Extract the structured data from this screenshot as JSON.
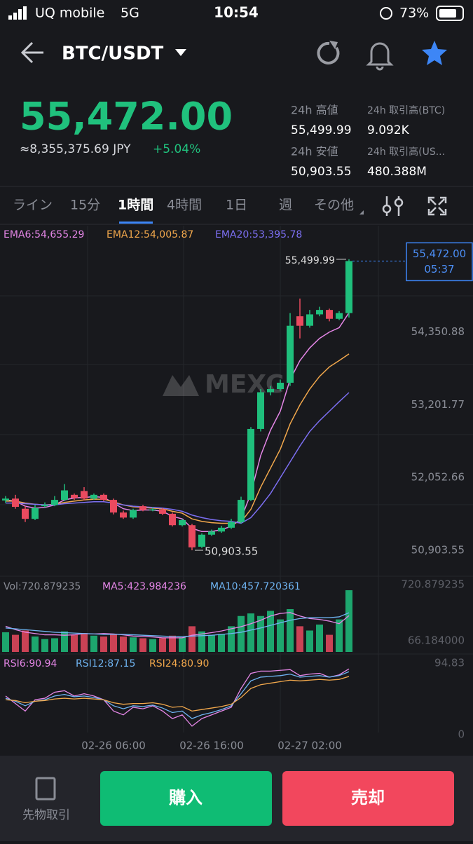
{
  "status": {
    "carrier": "UQ mobile",
    "network": "5G",
    "time": "10:54",
    "battery": "73%"
  },
  "header": {
    "pair": "BTC/USDT"
  },
  "price": {
    "last": "55,472.00",
    "jpy": "≈8,355,375.69 JPY",
    "change": "+5.04%"
  },
  "stats": {
    "high_label": "24h 高値",
    "high": "55,499.99",
    "vol_btc_label": "24h 取引高(BTC)",
    "vol_btc": "9.092K",
    "low_label": "24h 安値",
    "low": "50,903.55",
    "vol_usdt_label": "24h 取引高(US...",
    "vol_usdt": "480.388M"
  },
  "tabs": [
    "ライン",
    "15分",
    "1時間",
    "4時間",
    "1日",
    "週",
    "その他"
  ],
  "watermark": "MEXC",
  "bottom": {
    "futures": "先物取引",
    "buy": "購入",
    "sell": "売却"
  },
  "chart_data": {
    "type": "candlestick",
    "up_color": "#1fbf7c",
    "down_color": "#ea4a5f",
    "categories": [
      null,
      null,
      null,
      null,
      null,
      null,
      null,
      null,
      null,
      null,
      null,
      "02-26 06:00",
      null,
      null,
      null,
      null,
      null,
      null,
      null,
      null,
      null,
      "02-26 16:00",
      null,
      null,
      null,
      null,
      null,
      null,
      null,
      null,
      null,
      "02-27 02:00",
      null,
      null,
      null,
      null
    ],
    "open": [
      51690,
      51720,
      51560,
      51400,
      51600,
      51620,
      51700,
      51780,
      51840,
      51720,
      51780,
      51700,
      51500,
      51420,
      51600,
      51540,
      51550,
      51480,
      51300,
      51300,
      50960,
      51150,
      51200,
      51260,
      51350,
      51700,
      52820,
      53400,
      53450,
      53550,
      54600,
      54450,
      54630,
      54700,
      54560,
      54650
    ],
    "close": [
      51720,
      51590,
      51400,
      51570,
      51620,
      51700,
      51850,
      51730,
      51720,
      51780,
      51700,
      51500,
      51420,
      51540,
      51540,
      51550,
      51480,
      51300,
      51380,
      50950,
      51150,
      51200,
      51260,
      51350,
      51700,
      52820,
      53400,
      53450,
      53550,
      54450,
      54450,
      54630,
      54700,
      54560,
      54650,
      55472
    ],
    "high": [
      51760,
      51780,
      51600,
      51620,
      51660,
      51760,
      51950,
      51800,
      51900,
      51800,
      51800,
      51720,
      51530,
      51560,
      51620,
      51580,
      51570,
      51500,
      51400,
      51320,
      51170,
      51230,
      51290,
      51400,
      51750,
      52850,
      53450,
      53500,
      53600,
      54650,
      54880,
      54700,
      54750,
      54720,
      54680,
      55499.99
    ],
    "low": [
      51650,
      51560,
      51350,
      51380,
      51580,
      51600,
      51680,
      51700,
      51690,
      51700,
      51680,
      51470,
      51400,
      51400,
      51520,
      51520,
      51460,
      51280,
      51280,
      50903.55,
      50940,
      51130,
      51180,
      51240,
      51330,
      51680,
      52780,
      53350,
      53420,
      53500,
      54250,
      54420,
      54600,
      54520,
      54540,
      54580
    ],
    "ylim": [
      50494,
      56030
    ],
    "yticks": [
      {
        "value": 54350.88,
        "label": "54,350.88"
      },
      {
        "value": 53201.77,
        "label": "53,201.77"
      },
      {
        "value": 52052.66,
        "label": "52,052.66"
      },
      {
        "value": 50903.55,
        "label": "50,903.55"
      }
    ],
    "high_annotation": "55,499.99",
    "low_annotation": "50,903.55",
    "price_tag": {
      "price": "55,472.00",
      "time": "05:37"
    },
    "series": [
      {
        "name": "EMA6:54,655.29",
        "color": "#e486e6",
        "values": [
          51700,
          51680,
          51600,
          51570,
          51580,
          51620,
          51700,
          51730,
          51740,
          51750,
          51740,
          51650,
          51560,
          51530,
          51540,
          51540,
          51520,
          51440,
          51400,
          51250,
          51200,
          51200,
          51230,
          51280,
          51400,
          51800,
          52400,
          52800,
          53100,
          53600,
          53900,
          54100,
          54250,
          54350,
          54420,
          54655
        ]
      },
      {
        "name": "EMA12:54,005.87",
        "color": "#f2a84c",
        "values": [
          51680,
          51680,
          51650,
          51630,
          51620,
          51630,
          51660,
          51680,
          51700,
          51710,
          51710,
          51670,
          51620,
          51590,
          51580,
          51570,
          51560,
          51520,
          51490,
          51400,
          51360,
          51340,
          51330,
          51330,
          51350,
          51550,
          51900,
          52200,
          52500,
          52900,
          53200,
          53450,
          53650,
          53800,
          53900,
          54005
        ]
      },
      {
        "name": "EMA20:53,395.78",
        "color": "#7c6ff2",
        "values": [
          51650,
          51650,
          51640,
          51630,
          51620,
          51620,
          51640,
          51650,
          51660,
          51670,
          51670,
          51650,
          51620,
          51600,
          51590,
          51580,
          51570,
          51550,
          51520,
          51460,
          51420,
          51390,
          51370,
          51360,
          51330,
          51420,
          51600,
          51800,
          52050,
          52300,
          52550,
          52780,
          52950,
          53100,
          53250,
          53395
        ]
      }
    ],
    "volume": {
      "label": "Vol:720.879235",
      "ylim": [
        0,
        720.879235
      ],
      "yticks": [
        720.879235,
        {
          "value": 66.184,
          "label": "66.184000"
        }
      ],
      "values": [
        230,
        200,
        250,
        180,
        150,
        160,
        240,
        200,
        220,
        190,
        180,
        210,
        180,
        170,
        160,
        150,
        160,
        190,
        170,
        300,
        240,
        200,
        210,
        300,
        420,
        450,
        420,
        480,
        380,
        500,
        300,
        250,
        320,
        200,
        380,
        720.879235
      ],
      "series": [
        {
          "name": "MA5:423.984236",
          "color": "#e486e6",
          "values": [
            300,
            260,
            230,
            215,
            200,
            200,
            195,
            200,
            215,
            210,
            215,
            210,
            200,
            185,
            180,
            175,
            165,
            165,
            165,
            195,
            210,
            225,
            245,
            270,
            295,
            330,
            370,
            420,
            450,
            460,
            420,
            390,
            380,
            360,
            330,
            423.984236
          ]
        },
        {
          "name": "MA10:457.720361",
          "color": "#6fb4f2",
          "values": [
            280,
            270,
            260,
            250,
            240,
            230,
            225,
            220,
            215,
            210,
            205,
            205,
            205,
            200,
            195,
            190,
            185,
            180,
            178,
            185,
            190,
            195,
            205,
            215,
            230,
            255,
            280,
            310,
            340,
            370,
            390,
            400,
            400,
            400,
            410,
            457.720361
          ]
        }
      ]
    },
    "rsi": {
      "ylim": [
        0,
        94.83
      ],
      "yticks": [
        94.83,
        0
      ],
      "series": [
        {
          "name": "RSI6:90.94",
          "color": "#e486e6",
          "values": [
            55,
            45,
            35,
            50,
            52,
            60,
            62,
            55,
            58,
            55,
            50,
            35,
            30,
            40,
            38,
            42,
            35,
            25,
            30,
            15,
            25,
            30,
            35,
            40,
            65,
            85,
            88,
            88,
            89,
            90,
            82,
            84,
            85,
            80,
            83,
            90.94
          ]
        },
        {
          "name": "RSI12:87.15",
          "color": "#6fb4f2",
          "values": [
            52,
            48,
            42,
            48,
            50,
            55,
            57,
            54,
            55,
            53,
            50,
            42,
            38,
            42,
            41,
            43,
            39,
            33,
            35,
            25,
            30,
            33,
            37,
            42,
            58,
            75,
            80,
            81,
            82,
            84,
            80,
            81,
            82,
            80,
            82,
            87.15
          ]
        },
        {
          "name": "RSI24:80.90",
          "color": "#f2a84c",
          "values": [
            50,
            49,
            46,
            48,
            49,
            51,
            52,
            51,
            52,
            51,
            50,
            46,
            44,
            45,
            45,
            46,
            44,
            40,
            41,
            35,
            37,
            39,
            41,
            44,
            53,
            65,
            70,
            72,
            74,
            76,
            75,
            76,
            77,
            76,
            77,
            80.9
          ]
        }
      ]
    }
  }
}
